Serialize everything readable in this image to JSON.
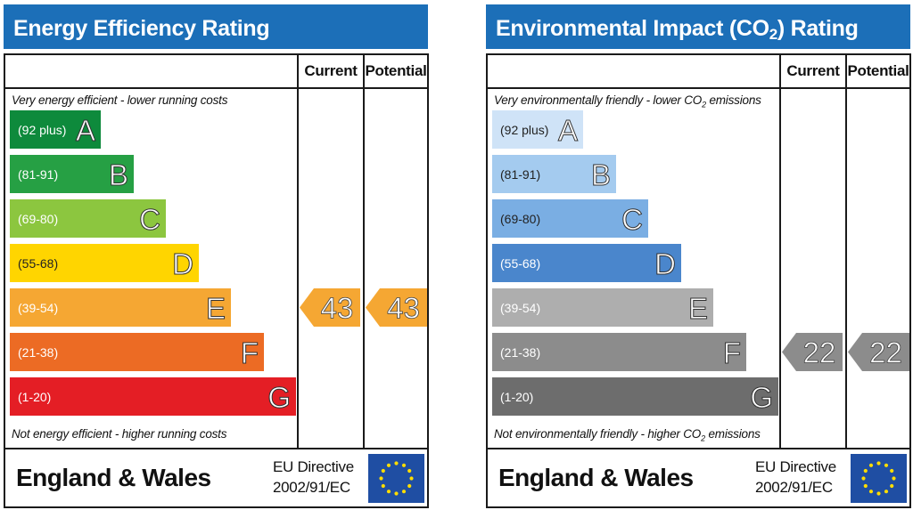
{
  "chart_data": [
    {
      "type": "bar",
      "title": "Energy Efficiency Rating",
      "columns": [
        "Current",
        "Potential"
      ],
      "top_note": "Very energy efficient - lower running costs",
      "bottom_note": "Not energy efficient - higher running costs",
      "bands": [
        {
          "letter": "A",
          "range": "(92 plus)",
          "color": "#0e8a3c"
        },
        {
          "letter": "B",
          "range": "(81-91)",
          "color": "#26a044"
        },
        {
          "letter": "C",
          "range": "(69-80)",
          "color": "#8cc63f"
        },
        {
          "letter": "D",
          "range": "(55-68)",
          "color": "#ffd500"
        },
        {
          "letter": "E",
          "range": "(39-54)",
          "color": "#f5a733"
        },
        {
          "letter": "F",
          "range": "(21-38)",
          "color": "#ec6b24"
        },
        {
          "letter": "G",
          "range": "(1-20)",
          "color": "#e41e25"
        }
      ],
      "current": {
        "value": 43,
        "band": "E",
        "color": "#f5a733"
      },
      "potential": {
        "value": 43,
        "band": "E",
        "color": "#f5a733"
      },
      "footer": {
        "country": "England & Wales",
        "directive_line1": "EU Directive",
        "directive_line2": "2002/91/EC"
      }
    },
    {
      "type": "bar",
      "title_main": "Environmental Impact (CO",
      "title_sub": "2",
      "title_end": ") Rating",
      "columns": [
        "Current",
        "Potential"
      ],
      "top_note_a": "Very environmentally friendly - lower CO",
      "top_note_sub": "2",
      "top_note_b": " emissions",
      "bottom_note_a": "Not environmentally friendly - higher CO",
      "bottom_note_sub": "2",
      "bottom_note_b": " emissions",
      "bands": [
        {
          "letter": "A",
          "range": "(92 plus)",
          "color": "#cfe3f7"
        },
        {
          "letter": "B",
          "range": "(81-91)",
          "color": "#a4cbef"
        },
        {
          "letter": "C",
          "range": "(69-80)",
          "color": "#7aaee3"
        },
        {
          "letter": "D",
          "range": "(55-68)",
          "color": "#4a86cc"
        },
        {
          "letter": "E",
          "range": "(39-54)",
          "color": "#aeaeae"
        },
        {
          "letter": "F",
          "range": "(21-38)",
          "color": "#8c8c8c"
        },
        {
          "letter": "G",
          "range": "(1-20)",
          "color": "#6d6d6d"
        }
      ],
      "current": {
        "value": 22,
        "band": "F",
        "color": "#8c8c8c"
      },
      "potential": {
        "value": 22,
        "band": "F",
        "color": "#8c8c8c"
      },
      "footer": {
        "country": "England & Wales",
        "directive_line1": "EU Directive",
        "directive_line2": "2002/91/EC"
      }
    }
  ]
}
